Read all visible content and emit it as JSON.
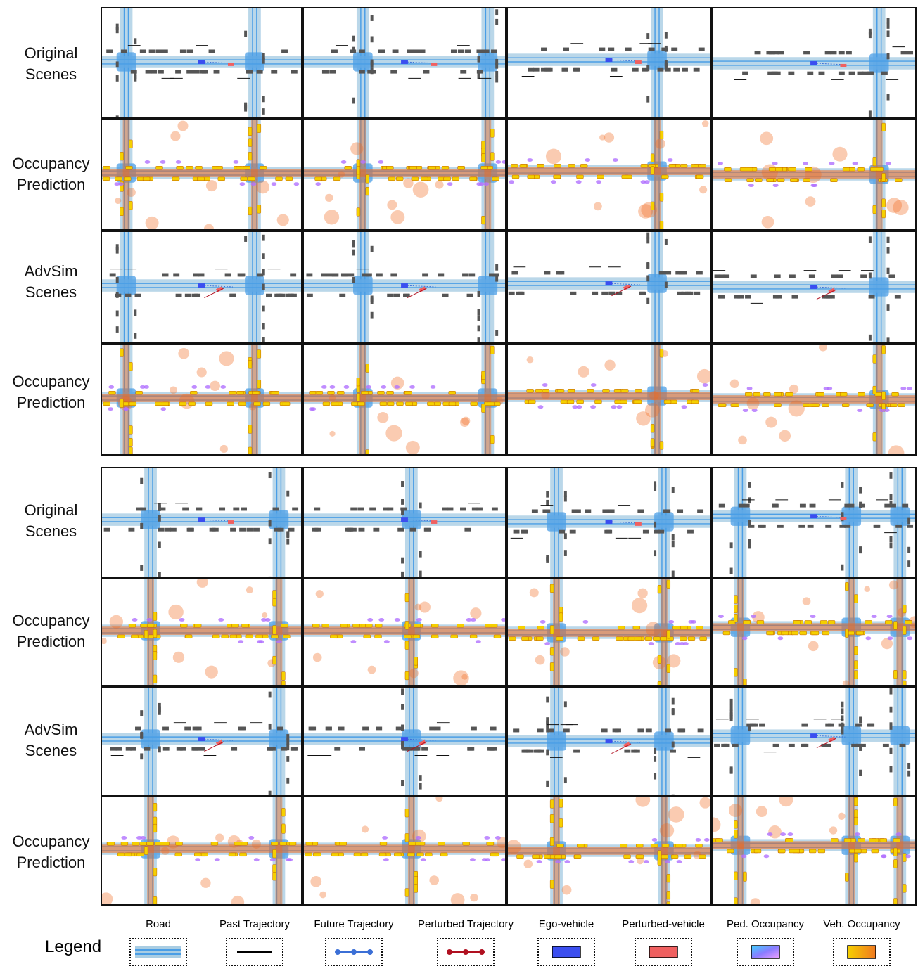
{
  "row_labels": [
    {
      "line1": "Original",
      "line2": "Scenes"
    },
    {
      "line1": "Occupancy",
      "line2": "Prediction"
    },
    {
      "line1": "AdvSim",
      "line2": "Scenes"
    },
    {
      "line1": "Occupancy",
      "line2": "Prediction"
    },
    {
      "line1": "Original",
      "line2": "Scenes"
    },
    {
      "line1": "Occupancy",
      "line2": "Prediction"
    },
    {
      "line1": "AdvSim",
      "line2": "Scenes"
    },
    {
      "line1": "Occupancy",
      "line2": "Prediction"
    }
  ],
  "legend": {
    "title": "Legend",
    "items": [
      {
        "label": "Road",
        "icon": "road-icon"
      },
      {
        "label": "Past Trajectory",
        "icon": "past-trajectory-icon"
      },
      {
        "label": "Future Trajectory",
        "icon": "future-trajectory-icon"
      },
      {
        "label": "Perturbed Trajectory",
        "icon": "perturbed-trajectory-icon"
      },
      {
        "label": "Ego-vehicle",
        "icon": "ego-vehicle-icon"
      },
      {
        "label": "Perturbed-vehicle",
        "icon": "perturbed-vehicle-icon"
      },
      {
        "label": "Ped. Occupancy",
        "icon": "ped-occupancy-icon"
      },
      {
        "label": "Veh. Occupancy",
        "icon": "veh-occupancy-icon"
      }
    ]
  },
  "colors": {
    "road": "#a9cde3",
    "lane": "#4a9ee6",
    "building": "#555555",
    "ego": "#3b4ef0",
    "perturbed": "#f06060",
    "future": "#3b6fd6",
    "perturbed_traj": "#b01020",
    "veh_occ": "#f5d000",
    "heat": "#f06a20",
    "ped_occ": "#b070ff"
  }
}
